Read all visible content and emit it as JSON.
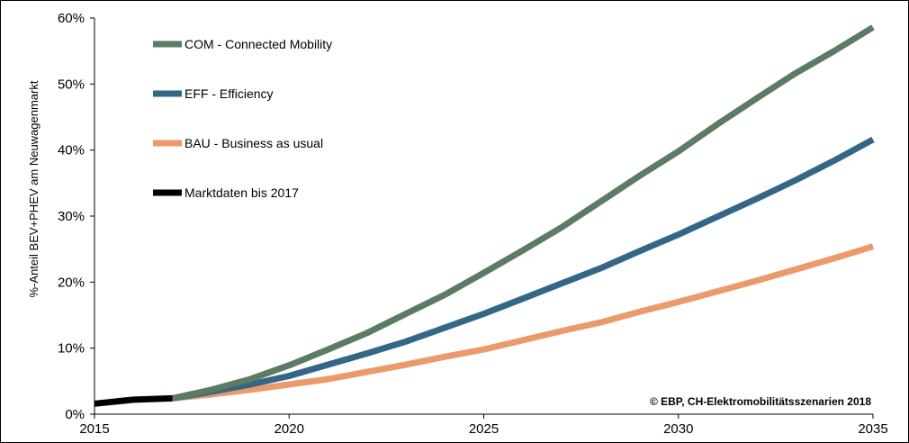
{
  "chart_data": {
    "type": "line",
    "title": "",
    "xlabel": "",
    "ylabel": "%-Anteil BEV+PHEV am Neuwagenmarkt",
    "xlim": [
      2015,
      2035
    ],
    "ylim": [
      0,
      60
    ],
    "x_ticks": [
      "2015",
      "2020",
      "2025",
      "2030",
      "2035"
    ],
    "y_ticks": [
      "0%",
      "10%",
      "20%",
      "30%",
      "40%",
      "50%",
      "60%"
    ],
    "grid": false,
    "legend_position": "top-left",
    "credit": "© EBP, CH-Elektromobilitätsszenarien 2018",
    "series": [
      {
        "name": "COM - Connected Mobility",
        "color": "#5b7b63",
        "x": [
          2017,
          2018,
          2019,
          2020,
          2021,
          2022,
          2023,
          2024,
          2025,
          2026,
          2027,
          2028,
          2029,
          2030,
          2031,
          2032,
          2033,
          2034,
          2035
        ],
        "y": [
          2.4,
          3.7,
          5.3,
          7.4,
          9.8,
          12.3,
          15.2,
          18.1,
          21.4,
          24.8,
          28.3,
          32.2,
          36.1,
          39.8,
          43.9,
          47.8,
          51.6,
          55.0,
          58.6
        ]
      },
      {
        "name": "EFF - Efficiency",
        "color": "#336788",
        "x": [
          2017,
          2018,
          2019,
          2020,
          2021,
          2022,
          2023,
          2024,
          2025,
          2026,
          2027,
          2028,
          2029,
          2030,
          2031,
          2032,
          2033,
          2034,
          2035
        ],
        "y": [
          2.4,
          3.4,
          4.5,
          5.8,
          7.5,
          9.2,
          11.0,
          13.1,
          15.2,
          17.5,
          19.8,
          22.1,
          24.7,
          27.2,
          29.9,
          32.6,
          35.4,
          38.4,
          41.6
        ]
      },
      {
        "name": "BAU - Business as usual",
        "color": "#ec9a6b",
        "x": [
          2017,
          2018,
          2019,
          2020,
          2021,
          2022,
          2023,
          2024,
          2025,
          2026,
          2027,
          2028,
          2029,
          2030,
          2031,
          2032,
          2033,
          2034,
          2035
        ],
        "y": [
          2.4,
          3.0,
          3.7,
          4.5,
          5.3,
          6.4,
          7.5,
          8.7,
          9.8,
          11.2,
          12.6,
          13.9,
          15.5,
          17.0,
          18.6,
          20.2,
          21.9,
          23.6,
          25.4
        ]
      },
      {
        "name": "Marktdaten bis 2017",
        "color": "#000000",
        "x": [
          2015,
          2016,
          2017
        ],
        "y": [
          1.6,
          2.2,
          2.4
        ]
      }
    ]
  }
}
